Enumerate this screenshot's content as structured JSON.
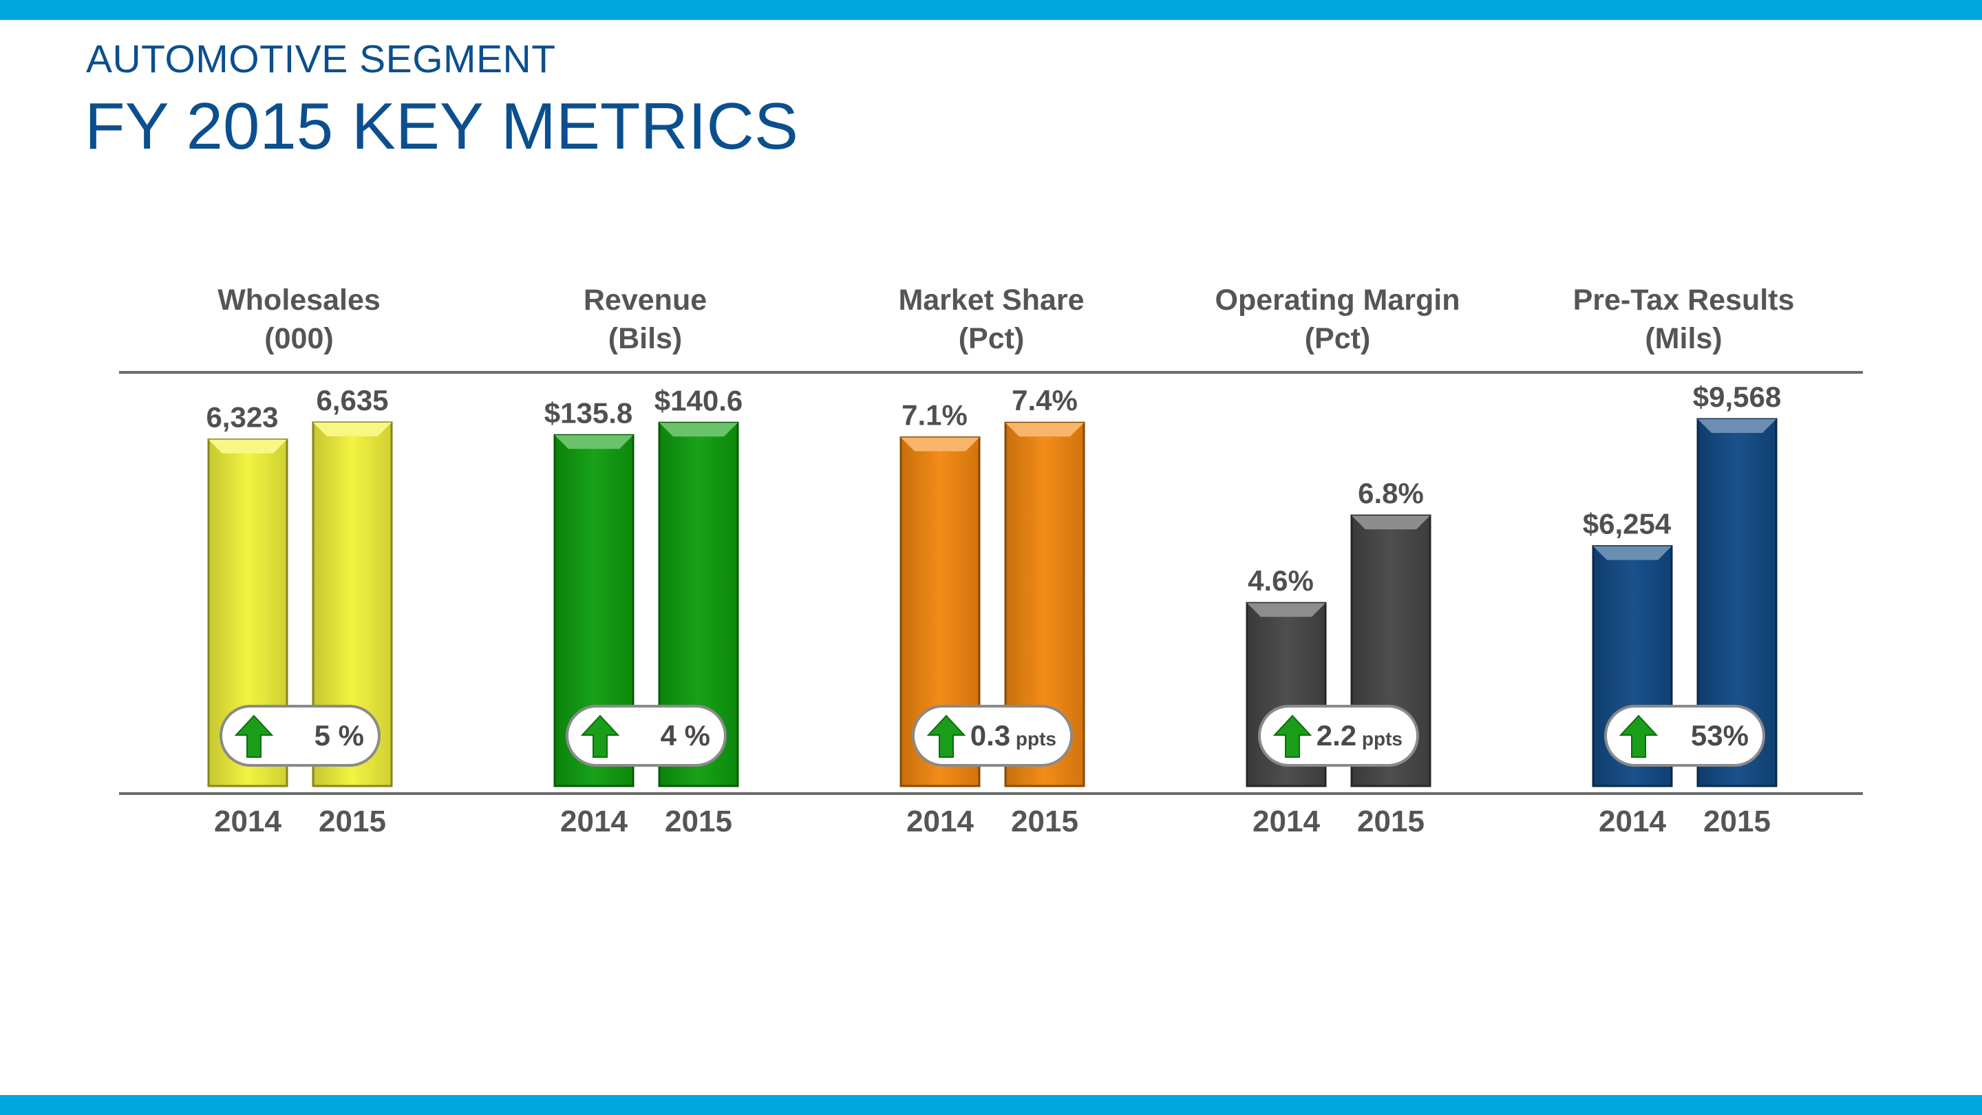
{
  "header": {
    "subtitle": "AUTOMOTIVE SEGMENT",
    "title": "FY 2015 KEY METRICS"
  },
  "colors": {
    "band": "#00a6e0",
    "title": "#0b4f8e",
    "arrow": "#1a9e1a"
  },
  "chart_data": [
    {
      "type": "bar",
      "title": "Wholesales",
      "unit_label": "(000)",
      "categories": [
        "2014",
        "2015"
      ],
      "values": [
        6323,
        6635
      ],
      "value_labels": [
        "6,323",
        "6,635"
      ],
      "ylim": [
        0,
        6998
      ],
      "color": "#f2f23a",
      "change": {
        "direction": "up",
        "value": "5",
        "unit": " %"
      }
    },
    {
      "type": "bar",
      "title": "Revenue",
      "unit_label": "(Bils)",
      "categories": [
        "2014",
        "2015"
      ],
      "values": [
        135.8,
        140.6
      ],
      "value_labels": [
        "$135.8",
        "$140.6"
      ],
      "ylim": [
        0,
        148.4
      ],
      "color": "#0e9e0e",
      "change": {
        "direction": "up",
        "value": "4",
        "unit": " %"
      }
    },
    {
      "type": "bar",
      "title": "Market Share",
      "unit_label": "(Pct)",
      "categories": [
        "2014",
        "2015"
      ],
      "values": [
        7.1,
        7.4
      ],
      "value_labels": [
        "7.1%",
        "7.4%"
      ],
      "ylim": [
        0,
        7.81
      ],
      "color": "#f4870f",
      "change": {
        "direction": "up",
        "value": "0.3",
        "unit": " ppts"
      }
    },
    {
      "type": "bar",
      "title": "Operating Margin",
      "unit_label": "(Pct)",
      "categories": [
        "2014",
        "2015"
      ],
      "values": [
        4.6,
        6.8
      ],
      "value_labels": [
        "4.6%",
        "6.8%"
      ],
      "ylim": [
        0,
        9.64
      ],
      "color": "#474747",
      "change": {
        "direction": "up",
        "value": "2.2",
        "unit": " ppts"
      }
    },
    {
      "type": "bar",
      "title": "Pre-Tax Results",
      "unit_label": "(Mils)",
      "categories": [
        "2014",
        "2015"
      ],
      "values": [
        6254,
        9568
      ],
      "value_labels": [
        "$6,254",
        "$9,568"
      ],
      "ylim": [
        0,
        10000
      ],
      "color": "#114a85",
      "change": {
        "direction": "up",
        "value": "53",
        "unit": "%"
      }
    }
  ]
}
